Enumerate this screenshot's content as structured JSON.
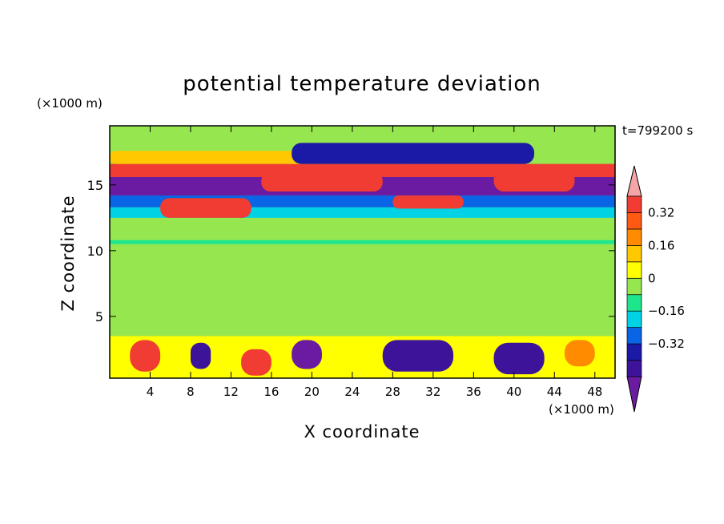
{
  "chart_data": {
    "type": "heatmap",
    "title": "potential temperature deviation",
    "xlabel": "X coordinate",
    "ylabel": "Z coordinate",
    "x_unit": "(×1000 m)",
    "y_unit": "(×1000 m)",
    "time_label": "t=799200 s",
    "xlim": [
      0,
      50
    ],
    "ylim": [
      0.3,
      19.5
    ],
    "x_ticks": [
      4,
      8,
      12,
      16,
      20,
      24,
      28,
      32,
      36,
      40,
      44,
      48
    ],
    "y_ticks": [
      5,
      10,
      15
    ],
    "colorbar": {
      "levels": [
        -0.48,
        -0.4,
        -0.32,
        -0.24,
        -0.16,
        -0.08,
        0,
        0.08,
        0.16,
        0.24,
        0.32,
        0.4,
        0.48
      ],
      "tick_labels": [
        "0.32",
        "0.16",
        "0",
        "−0.16",
        "−0.32"
      ],
      "tick_values": [
        0.32,
        0.16,
        0,
        -0.16,
        -0.32
      ],
      "colors": [
        "#6a1ba1",
        "#3d1499",
        "#1a1aa6",
        "#0a64e6",
        "#00d2e6",
        "#1ee68c",
        "#96e650",
        "#ffff00",
        "#ffc800",
        "#ff8c00",
        "#ff5a14",
        "#f03c32",
        "#f5a5a5"
      ]
    },
    "regions": [
      {
        "x0": 0,
        "x1": 50,
        "y0": 0.3,
        "y1": 19.5,
        "v": 0.0
      },
      {
        "x0": 0,
        "x1": 50,
        "y0": 3.5,
        "y1": 12.5,
        "v": 0.04
      },
      {
        "x0": 0,
        "x1": 50,
        "y0": 10.5,
        "y1": 10.8,
        "v": -0.05
      },
      {
        "x0": 0,
        "x1": 50,
        "y0": 12.5,
        "y1": 13.3,
        "v": -0.1
      },
      {
        "x0": 0,
        "x1": 50,
        "y0": 13.3,
        "y1": 14.2,
        "v": -0.2
      },
      {
        "x0": 0,
        "x1": 50,
        "y0": 14.2,
        "y1": 15.6,
        "v": -0.42
      },
      {
        "x0": 0,
        "x1": 50,
        "y0": 15.6,
        "y1": 16.6,
        "v": 0.42
      },
      {
        "x0": 0,
        "x1": 30,
        "y0": 16.6,
        "y1": 17.6,
        "v": 0.22
      },
      {
        "x0": 0,
        "x1": 50,
        "y0": 17.6,
        "y1": 19.5,
        "v": 0.05
      },
      {
        "x0": 0,
        "x1": 50,
        "y0": 0.3,
        "y1": 3.5,
        "v": 0.1
      },
      {
        "x0": 2,
        "x1": 5,
        "y0": 0.8,
        "y1": 3.2,
        "v": 0.46
      },
      {
        "x0": 8,
        "x1": 10,
        "y0": 1.0,
        "y1": 3.0,
        "v": -0.38
      },
      {
        "x0": 13,
        "x1": 16,
        "y0": 0.5,
        "y1": 2.5,
        "v": 0.46
      },
      {
        "x0": 18,
        "x1": 21,
        "y0": 1.0,
        "y1": 3.2,
        "v": -0.42
      },
      {
        "x0": 27,
        "x1": 34,
        "y0": 0.8,
        "y1": 3.2,
        "v": -0.36
      },
      {
        "x0": 38,
        "x1": 43,
        "y0": 0.6,
        "y1": 3.0,
        "v": -0.4
      },
      {
        "x0": 45,
        "x1": 48,
        "y0": 1.2,
        "y1": 3.2,
        "v": 0.3
      },
      {
        "x0": 5,
        "x1": 14,
        "y0": 12.5,
        "y1": 14.0,
        "v": 0.46
      },
      {
        "x0": 15,
        "x1": 27,
        "y0": 14.5,
        "y1": 16.0,
        "v": 0.46
      },
      {
        "x0": 28,
        "x1": 35,
        "y0": 13.2,
        "y1": 14.2,
        "v": 0.46
      },
      {
        "x0": 38,
        "x1": 46,
        "y0": 14.5,
        "y1": 16.2,
        "v": 0.46
      },
      {
        "x0": 18,
        "x1": 42,
        "y0": 16.6,
        "y1": 18.2,
        "v": -0.3
      }
    ]
  }
}
